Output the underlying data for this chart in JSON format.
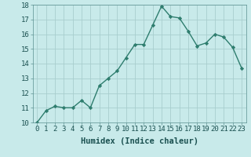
{
  "x": [
    0,
    1,
    2,
    3,
    4,
    5,
    6,
    7,
    8,
    9,
    10,
    11,
    12,
    13,
    14,
    15,
    16,
    17,
    18,
    19,
    20,
    21,
    22,
    23
  ],
  "y": [
    10.0,
    10.8,
    11.1,
    11.0,
    11.0,
    11.5,
    11.0,
    12.5,
    13.0,
    13.5,
    14.4,
    15.3,
    15.3,
    16.6,
    17.9,
    17.2,
    17.1,
    16.2,
    15.2,
    15.4,
    16.0,
    15.8,
    15.1,
    13.7
  ],
  "line_color": "#2e7d6e",
  "marker": "D",
  "marker_size": 2.2,
  "xlabel": "Humidex (Indice chaleur)",
  "xlim": [
    -0.5,
    23.5
  ],
  "ylim": [
    10,
    18
  ],
  "yticks": [
    10,
    11,
    12,
    13,
    14,
    15,
    16,
    17,
    18
  ],
  "xticks": [
    0,
    1,
    2,
    3,
    4,
    5,
    6,
    7,
    8,
    9,
    10,
    11,
    12,
    13,
    14,
    15,
    16,
    17,
    18,
    19,
    20,
    21,
    22,
    23
  ],
  "bg_color": "#c8eaea",
  "grid_color": "#a8cece",
  "line_width": 1.0,
  "tick_fontsize": 6.5,
  "xlabel_fontsize": 7.5
}
